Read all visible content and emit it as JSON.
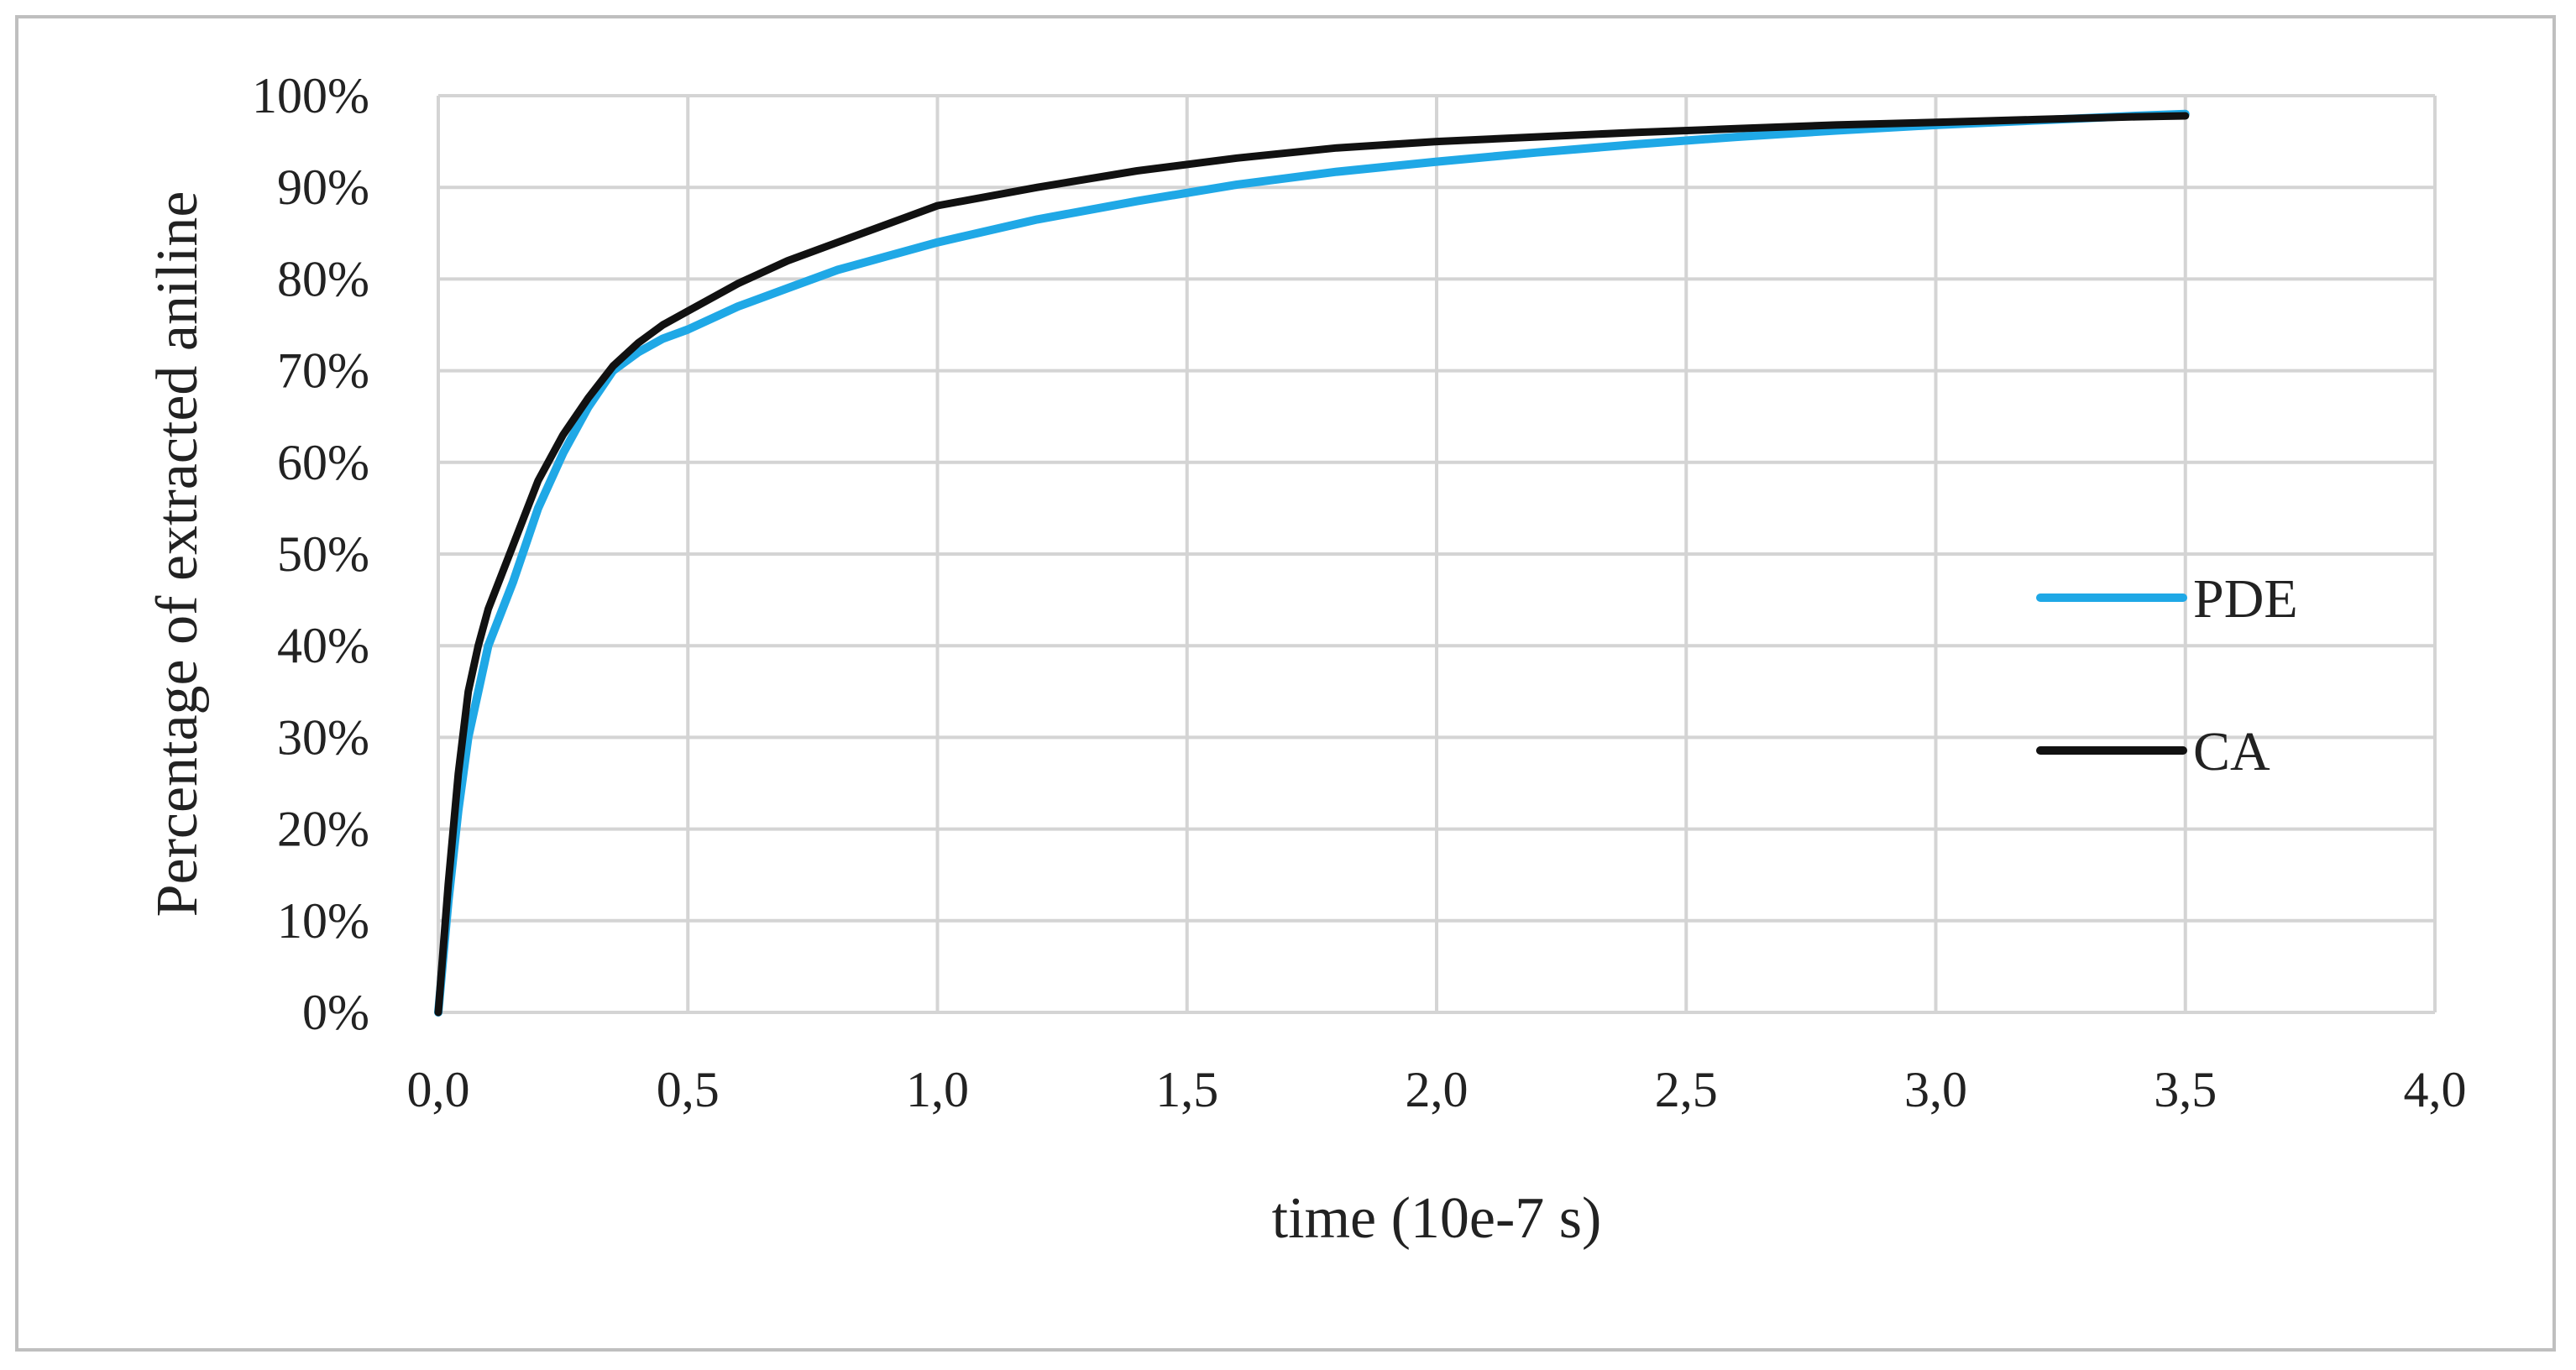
{
  "chart_data": {
    "type": "line",
    "title": "",
    "xlabel": "time (10e-7 s)",
    "ylabel": "Percentage  of extracted aniline",
    "xlim": [
      0,
      4
    ],
    "ylim": [
      0,
      100
    ],
    "x_ticks": [
      0,
      0.5,
      1,
      1.5,
      2,
      2.5,
      3,
      3.5,
      4
    ],
    "x_tick_labels": [
      "0,0",
      "0,5",
      "1,0",
      "1,5",
      "2,0",
      "2,5",
      "3,0",
      "3,5",
      "4,0"
    ],
    "y_ticks": [
      0,
      10,
      20,
      30,
      40,
      50,
      60,
      70,
      80,
      90,
      100
    ],
    "y_tick_labels": [
      "0%",
      "10%",
      "20%",
      "30%",
      "40%",
      "50%",
      "60%",
      "70%",
      "80%",
      "90%",
      "100%"
    ],
    "grid": true,
    "legend_position": "right",
    "series": [
      {
        "name": "PDE",
        "color": "#1fa8e6",
        "x": [
          0,
          0.01,
          0.02,
          0.04,
          0.06,
          0.08,
          0.1,
          0.15,
          0.2,
          0.25,
          0.3,
          0.35,
          0.4,
          0.45,
          0.5,
          0.6,
          0.7,
          0.8,
          0.9,
          1.0,
          1.2,
          1.4,
          1.6,
          1.8,
          2.0,
          2.2,
          2.4,
          2.6,
          2.8,
          3.0,
          3.2,
          3.4,
          3.5
        ],
        "y": [
          0,
          6,
          12,
          22,
          30,
          35,
          40,
          47,
          55,
          61,
          66,
          70,
          72,
          73.5,
          74.5,
          77,
          79,
          81,
          82.5,
          84,
          86.5,
          88.5,
          90.3,
          91.7,
          92.8,
          93.8,
          94.7,
          95.5,
          96.2,
          96.8,
          97.3,
          97.8,
          98
        ]
      },
      {
        "name": "CA",
        "color": "#111111",
        "x": [
          0,
          0.01,
          0.02,
          0.04,
          0.06,
          0.08,
          0.1,
          0.15,
          0.2,
          0.25,
          0.3,
          0.35,
          0.4,
          0.45,
          0.5,
          0.6,
          0.7,
          0.8,
          0.9,
          1.0,
          1.2,
          1.4,
          1.6,
          1.8,
          2.0,
          2.2,
          2.4,
          2.6,
          2.8,
          3.0,
          3.2,
          3.4,
          3.5
        ],
        "y": [
          0,
          7,
          14,
          26,
          35,
          40,
          44,
          51,
          58,
          63,
          67,
          70.5,
          73,
          75,
          76.5,
          79.5,
          82,
          84,
          86,
          88,
          90,
          91.8,
          93.2,
          94.3,
          95,
          95.5,
          96,
          96.4,
          96.8,
          97.1,
          97.4,
          97.7,
          97.8
        ]
      }
    ]
  }
}
